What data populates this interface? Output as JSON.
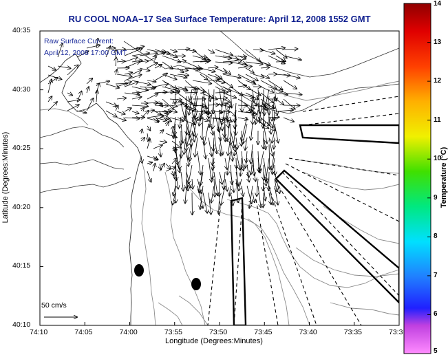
{
  "title": "RU COOL  NOAA–17  Sea Surface Temperature:  April 12, 2008 1552 GMT",
  "legend": {
    "line1": "Raw Surface Current:",
    "line2": "April 12, 2008 17:00 GMT"
  },
  "scale": {
    "label": "50 cm/s",
    "value_cm_s": 50
  },
  "colorbar": {
    "label": "Temperature (°C)",
    "min": 5,
    "max": 14,
    "ticks": [
      "5",
      "6",
      "7",
      "8",
      "9",
      "10",
      "11",
      "12",
      "13",
      "14"
    ]
  },
  "chart_data": {
    "type": "map",
    "xlabel": "Longitude (Degrees:Minutes)",
    "ylabel": "Latitude (Degrees:Minutes)",
    "x_ticks": [
      "74:10",
      "74:05",
      "74:00",
      "73:55",
      "73:50",
      "73:45",
      "73:40",
      "73:35",
      "73:3"
    ],
    "y_ticks": [
      "40:35",
      "40:30",
      "40:25",
      "40:20",
      "40:15",
      "40:10"
    ],
    "xlim_deg_west": [
      74.1667,
      73.5
    ],
    "ylim_deg_north": [
      40.1667,
      40.5833
    ]
  },
  "colors": {
    "title": "#0f1f8f",
    "legend_text": "#1a2a9a",
    "contour": "#8a8a8a",
    "coast": "#333333",
    "vectors": "#000000"
  }
}
